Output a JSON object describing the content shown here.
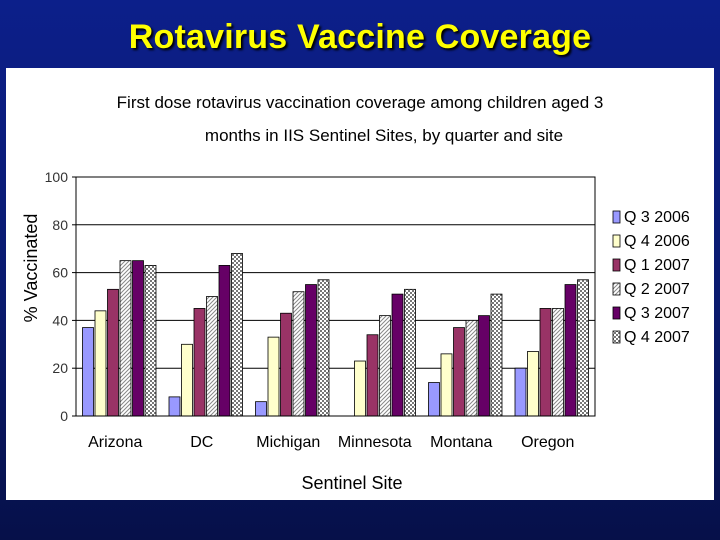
{
  "slide": {
    "title": "Rotavirus Vaccine Coverage"
  },
  "chart_data": {
    "type": "bar",
    "title_lines": [
      "First dose rotavirus vaccination coverage among children aged 3",
      "months in IIS Sentinel Sites, by quarter and site"
    ],
    "xlabel": "Sentinel Site",
    "ylabel": "% Vaccinated",
    "ylim": [
      0,
      100
    ],
    "yticks": [
      0,
      20,
      40,
      60,
      80,
      100
    ],
    "grid": true,
    "legend_position": "right",
    "categories": [
      "Arizona",
      "DC",
      "Michigan",
      "Minnesota",
      "Montana",
      "Oregon"
    ],
    "series": [
      {
        "name": "Q 3 2006",
        "color": "#9999ff",
        "pattern": "solid",
        "values": [
          37,
          8,
          6,
          0,
          14,
          20
        ]
      },
      {
        "name": "Q 4 2006",
        "color": "#ffffcc",
        "pattern": "solid",
        "values": [
          44,
          30,
          33,
          23,
          26,
          27
        ]
      },
      {
        "name": "Q 1 2007",
        "color": "#993366",
        "pattern": "solid",
        "values": [
          53,
          45,
          43,
          34,
          37,
          45
        ]
      },
      {
        "name": "Q 2 2007",
        "color": "#cccccc",
        "pattern": "diagonal",
        "values": [
          65,
          50,
          52,
          42,
          40,
          45
        ]
      },
      {
        "name": "Q 3 2007",
        "color": "#660066",
        "pattern": "solid",
        "values": [
          65,
          63,
          55,
          51,
          42,
          55
        ]
      },
      {
        "name": "Q 4 2007",
        "color": "#c0c0c0",
        "pattern": "checker",
        "values": [
          63,
          68,
          57,
          53,
          51,
          57
        ]
      }
    ]
  }
}
